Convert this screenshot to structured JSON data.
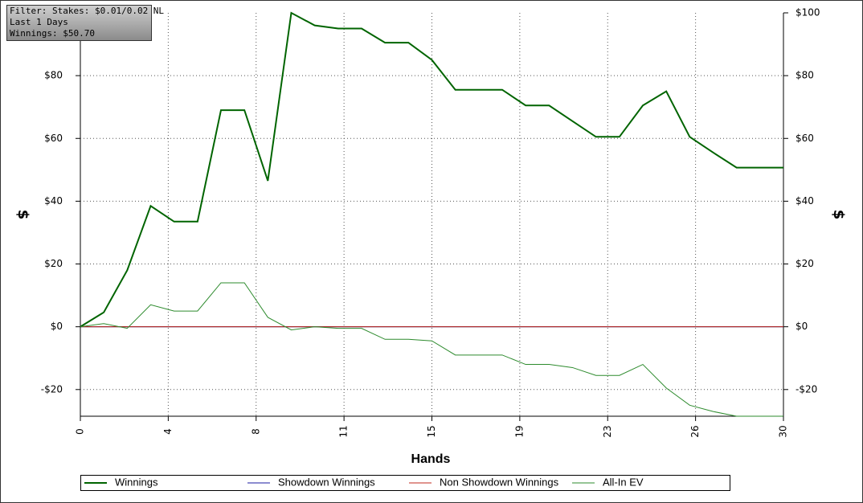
{
  "chart_data": {
    "type": "line",
    "annotations": [
      "Filter: Stakes: $0.01/0.02 NL",
      "Last 1 Days",
      "Winnings: $50.70"
    ],
    "xlabel": "Hands",
    "ylabel": "$",
    "y2label": "$",
    "x": [
      0,
      1,
      2,
      3,
      4,
      5,
      6,
      7,
      8,
      9,
      10,
      11,
      12,
      13,
      14,
      15,
      16,
      17,
      18,
      19,
      20,
      21,
      22,
      23,
      24,
      25,
      26,
      27,
      28,
      29,
      30
    ],
    "xlim": [
      0,
      30
    ],
    "xticks": [
      0,
      {
        "value": 3.75,
        "label": "4"
      },
      {
        "value": 7.5,
        "label": "8"
      },
      {
        "value": 11.25,
        "label": "11"
      },
      15,
      {
        "value": 18.75,
        "label": "19"
      },
      {
        "value": 22.5,
        "label": "23"
      },
      {
        "value": 26.25,
        "label": "26"
      },
      30
    ],
    "ylim": [
      -28.5,
      100
    ],
    "yticks": [
      {
        "value": -20,
        "label": "-$20"
      },
      {
        "value": 0,
        "label": "$0"
      },
      {
        "value": 20,
        "label": "$20"
      },
      {
        "value": 40,
        "label": "$40"
      },
      {
        "value": 60,
        "label": "$60"
      },
      {
        "value": 80,
        "label": "$80"
      }
    ],
    "y2lim": [
      -28.5,
      100
    ],
    "y2ticks": [
      {
        "value": -20,
        "label": "-$20"
      },
      {
        "value": 0,
        "label": "$0"
      },
      {
        "value": 20,
        "label": "$20"
      },
      {
        "value": 40,
        "label": "$40"
      },
      {
        "value": 60,
        "label": "$60"
      },
      {
        "value": 80,
        "label": "$80"
      },
      {
        "value": 100,
        "label": "$100"
      }
    ],
    "grid": true,
    "legend": "bottom",
    "series": [
      {
        "name": "Winnings",
        "color": "#006400",
        "values": [
          0,
          4.6,
          18,
          38.5,
          33.5,
          33.5,
          69,
          69,
          46.5,
          100,
          96,
          95,
          95,
          90.5,
          90.5,
          85,
          75.5,
          75.5,
          75.5,
          70.5,
          70.5,
          65.5,
          60.5,
          60.5,
          70.5,
          75,
          60.5,
          55.5,
          50.7,
          50.7,
          50.7
        ]
      },
      {
        "name": "Showdown Winnings",
        "color": "#1a1aa0",
        "values": [
          0,
          0,
          0,
          0,
          0,
          0,
          0,
          0,
          0,
          0,
          0,
          0,
          0,
          0,
          0,
          0,
          0,
          0,
          0,
          0,
          0,
          0,
          0,
          0,
          0,
          0,
          0,
          0,
          0,
          0,
          0
        ]
      },
      {
        "name": "Non Showdown Winnings",
        "color": "#c0281c",
        "values": [
          0,
          0,
          0,
          0,
          0,
          0,
          0,
          0,
          0,
          0,
          0,
          0,
          0,
          0,
          0,
          0,
          0,
          0,
          0,
          0,
          0,
          0,
          0,
          0,
          0,
          0,
          0,
          0,
          0,
          0,
          0
        ]
      },
      {
        "name": "All-In EV",
        "color": "#2e8b2e",
        "values": [
          0,
          1,
          -0.5,
          7,
          5,
          5,
          14,
          14,
          3,
          -1,
          0,
          -0.5,
          -0.5,
          -4,
          -4,
          -4.5,
          -9,
          -9,
          -9,
          -12,
          -12,
          -13,
          -15.5,
          -15.5,
          -12,
          -19.5,
          -25,
          -27,
          -28.5,
          -28.5,
          -28.5
        ]
      }
    ]
  }
}
